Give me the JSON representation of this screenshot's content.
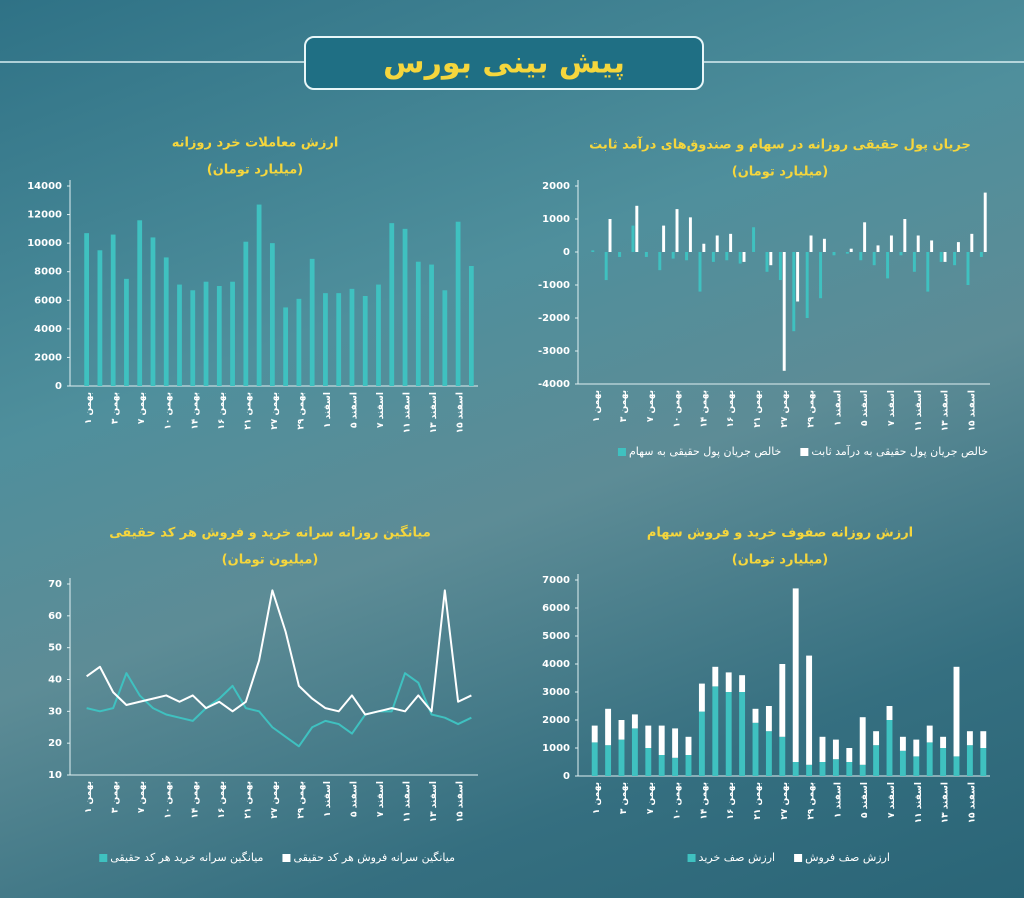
{
  "header": {
    "title": "پیش بینی بورس"
  },
  "chart_data": [
    {
      "type": "bar",
      "title": "ارزش معاملات خرد روزانه",
      "subtitle": "(میلیارد تومان)",
      "categories": [
        "۱ بهمن",
        null,
        "۳ بهمن",
        null,
        "۷ بهمن",
        null,
        "۱۰ بهمن",
        null,
        "۱۴ بهمن",
        null,
        "۱۶ بهمن",
        null,
        "۲۱ بهمن",
        null,
        "۲۷ بهمن",
        null,
        "۲۹ بهمن",
        null,
        "۱ اسفند",
        null,
        "۵ اسفند",
        null,
        "۷ اسفند",
        null,
        "۱۱ اسفند",
        null,
        "۱۳ اسفند",
        null,
        "۱۵ اسفند",
        null
      ],
      "values": [
        10700,
        9500,
        10600,
        7500,
        11600,
        10400,
        9000,
        7100,
        6700,
        7300,
        7000,
        7300,
        10100,
        12700,
        10000,
        5500,
        6100,
        8900,
        6500,
        6500,
        6800,
        6300,
        7100,
        11400,
        11000,
        8700,
        8500,
        6700,
        11500,
        8400
      ],
      "color": "#3fc1c0",
      "ylim": [
        0,
        14000
      ],
      "yticks": [
        0,
        2000,
        4000,
        6000,
        8000,
        10000,
        12000,
        14000
      ]
    },
    {
      "type": "bar",
      "title": "جریان پول حقیقی روزانه در سهام و صندوق‌های درآمد ثابت",
      "subtitle": "(میلیارد تومان)",
      "categories": [
        "۱ بهمن",
        null,
        "۳ بهمن",
        null,
        "۷ بهمن",
        null,
        "۱۰ بهمن",
        null,
        "۱۴ بهمن",
        null,
        "۱۶ بهمن",
        null,
        "۲۱ بهمن",
        null,
        "۲۷ بهمن",
        null,
        "۲۹ بهمن",
        null,
        "۱ اسفند",
        null,
        "۵ اسفند",
        null,
        "۷ اسفند",
        null,
        "۱۱ اسفند",
        null,
        "۱۳ اسفند",
        null,
        "۱۵ اسفند",
        null
      ],
      "series": [
        {
          "name": "خالص جریان پول حقیقی به سهام",
          "color": "#3fc1c0",
          "values": [
            50,
            -850,
            -150,
            800,
            -150,
            -550,
            -200,
            -250,
            -1200,
            -300,
            -250,
            -350,
            750,
            -600,
            -850,
            -2400,
            -2000,
            -1400,
            -100,
            -50,
            -250,
            -400,
            -800,
            -100,
            -600,
            -1200,
            -300,
            -400,
            -1000,
            -150
          ]
        },
        {
          "name": "خالص جریان پول حقیقی به درآمد ثابت",
          "color": "#ffffff",
          "values": [
            0,
            1000,
            0,
            1400,
            0,
            800,
            1300,
            1050,
            250,
            500,
            550,
            -300,
            0,
            -400,
            -3600,
            -1500,
            500,
            400,
            0,
            100,
            900,
            200,
            500,
            1000,
            500,
            350,
            -300,
            300,
            550,
            1800
          ]
        }
      ],
      "ylim": [
        -4000,
        2000
      ],
      "yticks": [
        -4000,
        -3000,
        -2000,
        -1000,
        0,
        1000,
        2000
      ]
    },
    {
      "type": "line",
      "title": "میانگین روزانه سرانه خرید و فروش هر کد حقیقی",
      "subtitle": "(میلیون تومان)",
      "categories": [
        "۱ بهمن",
        null,
        "۳ بهمن",
        null,
        "۷ بهمن",
        null,
        "۱۰ بهمن",
        null,
        "۱۴ بهمن",
        null,
        "۱۶ بهمن",
        null,
        "۲۱ بهمن",
        null,
        "۲۷ بهمن",
        null,
        "۲۹ بهمن",
        null,
        "۱ اسفند",
        null,
        "۵ اسفند",
        null,
        "۷ اسفند",
        null,
        "۱۱ اسفند",
        null,
        "۱۳ اسفند",
        null,
        "۱۵ اسفند",
        null
      ],
      "series": [
        {
          "name": "میانگین سرانه خرید هر کد حقیقی",
          "color": "#3fc1c0",
          "values": [
            31,
            30,
            31,
            42,
            35,
            31,
            29,
            28,
            27,
            31,
            34,
            38,
            31,
            30,
            25,
            22,
            19,
            25,
            27,
            26,
            23,
            29,
            30,
            30,
            42,
            39,
            29,
            28,
            26,
            28
          ]
        },
        {
          "name": "میانگین سرانه فروش هر کد حقیقی",
          "color": "#ffffff",
          "values": [
            41,
            44,
            36,
            32,
            33,
            34,
            35,
            33,
            35,
            31,
            33,
            30,
            33,
            46,
            68,
            55,
            38,
            34,
            31,
            30,
            35,
            29,
            30,
            31,
            30,
            35,
            30,
            68,
            33,
            35
          ]
        }
      ],
      "ylim": [
        10,
        70
      ],
      "yticks": [
        10,
        20,
        30,
        40,
        50,
        60,
        70
      ]
    },
    {
      "type": "bar",
      "stacked": true,
      "title": "ارزش روزانه صفوف خرید و فروش سهام",
      "subtitle": "(میلیارد تومان)",
      "categories": [
        "۱ بهمن",
        null,
        "۳ بهمن",
        null,
        "۷ بهمن",
        null,
        "۱۰ بهمن",
        null,
        "۱۴ بهمن",
        null,
        "۱۶ بهمن",
        null,
        "۲۱ بهمن",
        null,
        "۲۷ بهمن",
        null,
        "۲۹ بهمن",
        null,
        "۱ اسفند",
        null,
        "۵ اسفند",
        null,
        "۷ اسفند",
        null,
        "۱۱ اسفند",
        null,
        "۱۳ اسفند",
        null,
        "۱۵ اسفند",
        null
      ],
      "series": [
        {
          "name": "ارزش صف خرید",
          "color": "#3fc1c0",
          "values": [
            1200,
            1100,
            1300,
            1700,
            1000,
            750,
            650,
            750,
            2300,
            3200,
            3000,
            3000,
            1900,
            1600,
            1400,
            500,
            400,
            500,
            600,
            500,
            400,
            1100,
            2000,
            900,
            700,
            1200,
            1000,
            700,
            1100,
            1000
          ]
        },
        {
          "name": "ارزش صف فروش",
          "color": "#ffffff",
          "values": [
            600,
            1300,
            700,
            500,
            800,
            1050,
            1050,
            650,
            1000,
            700,
            700,
            600,
            500,
            900,
            2600,
            6200,
            3900,
            900,
            700,
            500,
            1700,
            500,
            500,
            500,
            600,
            600,
            400,
            3200,
            500,
            600
          ]
        }
      ],
      "ylim": [
        0,
        7000
      ],
      "yticks": [
        0,
        1000,
        2000,
        3000,
        4000,
        5000,
        6000,
        7000
      ]
    }
  ]
}
